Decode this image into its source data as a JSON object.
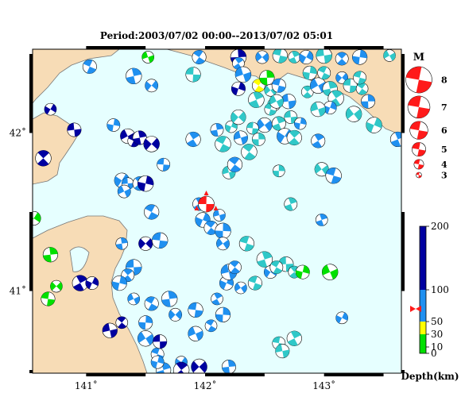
{
  "title": "Period:2003/07/02 00:00--2013/07/02 05:01",
  "x_ticks": [
    {
      "value": 141,
      "label": "141˚"
    },
    {
      "value": 142,
      "label": "142˚"
    },
    {
      "value": 143,
      "label": "143˚"
    }
  ],
  "y_ticks": [
    {
      "value": 42,
      "label": "42˚"
    },
    {
      "value": 41,
      "label": "41˚"
    }
  ],
  "extent": {
    "lon_min": 140.55,
    "lon_max": 143.65,
    "lat_min": 40.48,
    "lat_max": 42.53
  },
  "colors": {
    "sea": "#e6ffff",
    "land": "#f7dcb6",
    "coast": "#777777",
    "depth_0_30": "#00e000",
    "depth_30_50": "#ffff00",
    "depth_50_100": "#2090f0",
    "depth_100_200": "#0000a0",
    "teal": "#30c8c8",
    "main_event": "#ff1a1a"
  },
  "magnitude_legend": {
    "title": "M",
    "items": [
      {
        "label": "8",
        "mag": 8
      },
      {
        "label": "7",
        "mag": 7
      },
      {
        "label": "6",
        "mag": 6
      },
      {
        "label": "5",
        "mag": 5
      },
      {
        "label": "4",
        "mag": 4
      },
      {
        "label": "3",
        "mag": 3
      }
    ]
  },
  "depth_scale": {
    "ticks": [
      {
        "value": 200,
        "label": "200"
      },
      {
        "value": 100,
        "label": "100"
      },
      {
        "value": 50,
        "label": "50"
      },
      {
        "value": 30,
        "label": "30"
      },
      {
        "value": 10,
        "label": "10"
      },
      {
        "value": 0,
        "label": "0"
      }
    ],
    "unit": "Depth(km)",
    "main_event_depth": 70
  },
  "main_event": {
    "lon": 142.01,
    "lat": 41.55,
    "mag": 5.5
  },
  "events": [
    {
      "lon": 141.52,
      "lat": 42.48,
      "d": 20
    },
    {
      "lon": 141.95,
      "lat": 42.48,
      "d": 70
    },
    {
      "lon": 142.28,
      "lat": 42.48,
      "d": 150
    },
    {
      "lon": 142.48,
      "lat": 42.48,
      "d": 70
    },
    {
      "lon": 142.63,
      "lat": 42.49,
      "d": 60
    },
    {
      "lon": 142.75,
      "lat": 42.48,
      "d": 60
    },
    {
      "lon": 142.85,
      "lat": 42.48,
      "d": 70
    },
    {
      "lon": 143.0,
      "lat": 42.49,
      "d": 60
    },
    {
      "lon": 143.15,
      "lat": 42.47,
      "d": 80
    },
    {
      "lon": 143.3,
      "lat": 42.48,
      "d": 70
    },
    {
      "lon": 143.55,
      "lat": 42.49,
      "d": 60
    },
    {
      "lon": 141.03,
      "lat": 42.42,
      "d": 70
    },
    {
      "lon": 141.4,
      "lat": 42.36,
      "d": 70
    },
    {
      "lon": 141.55,
      "lat": 42.3,
      "d": 70
    },
    {
      "lon": 141.9,
      "lat": 42.37,
      "d": 60
    },
    {
      "lon": 142.28,
      "lat": 42.44,
      "d": 70
    },
    {
      "lon": 142.28,
      "lat": 42.28,
      "d": 150
    },
    {
      "lon": 142.32,
      "lat": 42.37,
      "d": 90
    },
    {
      "lon": 142.45,
      "lat": 42.3,
      "d": 40
    },
    {
      "lon": 142.52,
      "lat": 42.35,
      "d": 10
    },
    {
      "lon": 142.55,
      "lat": 42.27,
      "d": 60
    },
    {
      "lon": 142.62,
      "lat": 42.3,
      "d": 60
    },
    {
      "lon": 142.43,
      "lat": 42.21,
      "d": 60
    },
    {
      "lon": 142.58,
      "lat": 42.18,
      "d": 60
    },
    {
      "lon": 142.7,
      "lat": 42.2,
      "d": 60
    },
    {
      "lon": 142.86,
      "lat": 42.26,
      "d": 60
    },
    {
      "lon": 142.88,
      "lat": 42.38,
      "d": 60
    },
    {
      "lon": 142.95,
      "lat": 42.3,
      "d": 60
    },
    {
      "lon": 143.0,
      "lat": 42.38,
      "d": 60
    },
    {
      "lon": 143.05,
      "lat": 42.28,
      "d": 60
    },
    {
      "lon": 143.15,
      "lat": 42.35,
      "d": 60
    },
    {
      "lon": 143.22,
      "lat": 42.3,
      "d": 60
    },
    {
      "lon": 143.1,
      "lat": 42.22,
      "d": 60
    },
    {
      "lon": 143.05,
      "lat": 42.16,
      "d": 60
    },
    {
      "lon": 142.95,
      "lat": 42.15,
      "d": 60
    },
    {
      "lon": 143.32,
      "lat": 42.28,
      "d": 60
    },
    {
      "lon": 143.37,
      "lat": 42.2,
      "d": 60
    },
    {
      "lon": 143.25,
      "lat": 42.12,
      "d": 60
    },
    {
      "lon": 143.3,
      "lat": 42.35,
      "d": 60
    },
    {
      "lon": 143.62,
      "lat": 41.96,
      "d": 60
    },
    {
      "lon": 140.7,
      "lat": 42.15,
      "d": 150
    },
    {
      "lon": 140.9,
      "lat": 42.02,
      "d": 150
    },
    {
      "lon": 140.64,
      "lat": 41.84,
      "d": 150
    },
    {
      "lon": 141.23,
      "lat": 42.05,
      "d": 70
    },
    {
      "lon": 141.35,
      "lat": 41.98,
      "d": 150
    },
    {
      "lon": 141.4,
      "lat": 41.95,
      "d": 150
    },
    {
      "lon": 141.45,
      "lat": 41.97,
      "d": 150
    },
    {
      "lon": 141.55,
      "lat": 41.93,
      "d": 150
    },
    {
      "lon": 141.65,
      "lat": 41.8,
      "d": 70
    },
    {
      "lon": 141.9,
      "lat": 41.96,
      "d": 70
    },
    {
      "lon": 142.22,
      "lat": 42.04,
      "d": 60
    },
    {
      "lon": 142.3,
      "lat": 41.97,
      "d": 60
    },
    {
      "lon": 142.37,
      "lat": 41.88,
      "d": 60
    },
    {
      "lon": 142.45,
      "lat": 41.96,
      "d": 60
    },
    {
      "lon": 142.5,
      "lat": 42.05,
      "d": 60
    },
    {
      "lon": 142.55,
      "lat": 42.15,
      "d": 60
    },
    {
      "lon": 142.62,
      "lat": 42.06,
      "d": 60
    },
    {
      "lon": 142.67,
      "lat": 41.98,
      "d": 60
    },
    {
      "lon": 142.72,
      "lat": 42.1,
      "d": 60
    },
    {
      "lon": 142.75,
      "lat": 41.97,
      "d": 60
    },
    {
      "lon": 142.8,
      "lat": 42.06,
      "d": 60
    },
    {
      "lon": 142.6,
      "lat": 42.2,
      "d": 60
    },
    {
      "lon": 142.15,
      "lat": 41.93,
      "d": 60
    },
    {
      "lon": 142.1,
      "lat": 42.02,
      "d": 60
    },
    {
      "lon": 142.28,
      "lat": 42.1,
      "d": 60
    },
    {
      "lon": 142.4,
      "lat": 42.03,
      "d": 60
    },
    {
      "lon": 142.95,
      "lat": 41.95,
      "d": 60
    },
    {
      "lon": 143.42,
      "lat": 42.05,
      "d": 60
    },
    {
      "lon": 142.2,
      "lat": 41.75,
      "d": 60
    },
    {
      "lon": 142.25,
      "lat": 41.8,
      "d": 60
    },
    {
      "lon": 142.62,
      "lat": 41.76,
      "d": 60
    },
    {
      "lon": 142.98,
      "lat": 41.77,
      "d": 60
    },
    {
      "lon": 143.08,
      "lat": 41.73,
      "d": 60
    },
    {
      "lon": 142.72,
      "lat": 41.55,
      "d": 60
    },
    {
      "lon": 141.3,
      "lat": 41.7,
      "d": 70
    },
    {
      "lon": 141.35,
      "lat": 41.68,
      "d": 70
    },
    {
      "lon": 141.45,
      "lat": 41.68,
      "d": 70
    },
    {
      "lon": 141.5,
      "lat": 41.68,
      "d": 150
    },
    {
      "lon": 141.32,
      "lat": 41.63,
      "d": 70
    },
    {
      "lon": 141.55,
      "lat": 41.5,
      "d": 70
    },
    {
      "lon": 141.3,
      "lat": 41.3,
      "d": 70
    },
    {
      "lon": 141.5,
      "lat": 41.3,
      "d": 150
    },
    {
      "lon": 141.62,
      "lat": 41.32,
      "d": 70
    },
    {
      "lon": 141.95,
      "lat": 41.55,
      "d": 70
    },
    {
      "lon": 141.98,
      "lat": 41.45,
      "d": 70
    },
    {
      "lon": 142.12,
      "lat": 41.48,
      "d": 70
    },
    {
      "lon": 142.05,
      "lat": 41.4,
      "d": 70
    },
    {
      "lon": 142.15,
      "lat": 41.38,
      "d": 70
    },
    {
      "lon": 142.15,
      "lat": 41.3,
      "d": 70
    },
    {
      "lon": 142.35,
      "lat": 41.3,
      "d": 60
    },
    {
      "lon": 142.98,
      "lat": 41.45,
      "d": 70
    },
    {
      "lon": 140.56,
      "lat": 41.46,
      "d": 20
    },
    {
      "lon": 141.4,
      "lat": 41.15,
      "d": 70
    },
    {
      "lon": 141.35,
      "lat": 41.1,
      "d": 70
    },
    {
      "lon": 141.28,
      "lat": 41.05,
      "d": 70
    },
    {
      "lon": 141.4,
      "lat": 40.95,
      "d": 70
    },
    {
      "lon": 141.55,
      "lat": 40.92,
      "d": 70
    },
    {
      "lon": 141.7,
      "lat": 40.95,
      "d": 70
    },
    {
      "lon": 141.75,
      "lat": 40.85,
      "d": 70
    },
    {
      "lon": 141.92,
      "lat": 40.88,
      "d": 70
    },
    {
      "lon": 142.1,
      "lat": 40.95,
      "d": 70
    },
    {
      "lon": 142.18,
      "lat": 41.05,
      "d": 70
    },
    {
      "lon": 142.2,
      "lat": 41.12,
      "d": 70
    },
    {
      "lon": 142.25,
      "lat": 41.15,
      "d": 70
    },
    {
      "lon": 142.15,
      "lat": 40.85,
      "d": 70
    },
    {
      "lon": 142.3,
      "lat": 41.02,
      "d": 70
    },
    {
      "lon": 142.42,
      "lat": 41.05,
      "d": 60
    },
    {
      "lon": 142.5,
      "lat": 41.2,
      "d": 60
    },
    {
      "lon": 142.55,
      "lat": 41.12,
      "d": 60
    },
    {
      "lon": 142.68,
      "lat": 41.17,
      "d": 60
    },
    {
      "lon": 142.75,
      "lat": 41.12,
      "d": 60
    },
    {
      "lon": 142.82,
      "lat": 41.12,
      "d": 20
    },
    {
      "lon": 143.05,
      "lat": 41.12,
      "d": 20
    },
    {
      "lon": 142.6,
      "lat": 41.15,
      "d": 60
    },
    {
      "lon": 140.7,
      "lat": 41.23,
      "d": 20
    },
    {
      "lon": 140.75,
      "lat": 41.03,
      "d": 20
    },
    {
      "lon": 140.68,
      "lat": 40.95,
      "d": 20
    },
    {
      "lon": 140.95,
      "lat": 41.05,
      "d": 150
    },
    {
      "lon": 141.05,
      "lat": 41.05,
      "d": 150
    },
    {
      "lon": 141.2,
      "lat": 40.75,
      "d": 150
    },
    {
      "lon": 141.3,
      "lat": 40.8,
      "d": 150
    },
    {
      "lon": 141.5,
      "lat": 40.8,
      "d": 70
    },
    {
      "lon": 141.5,
      "lat": 40.7,
      "d": 70
    },
    {
      "lon": 141.6,
      "lat": 40.6,
      "d": 70
    },
    {
      "lon": 141.65,
      "lat": 40.5,
      "d": 70
    },
    {
      "lon": 141.8,
      "lat": 40.55,
      "d": 70
    },
    {
      "lon": 141.62,
      "lat": 40.68,
      "d": 150
    },
    {
      "lon": 141.8,
      "lat": 40.5,
      "d": 150
    },
    {
      "lon": 141.6,
      "lat": 40.55,
      "d": 70
    },
    {
      "lon": 141.92,
      "lat": 40.73,
      "d": 70
    },
    {
      "lon": 142.05,
      "lat": 40.78,
      "d": 70
    },
    {
      "lon": 142.2,
      "lat": 40.52,
      "d": 70
    },
    {
      "lon": 141.95,
      "lat": 40.52,
      "d": 150
    },
    {
      "lon": 142.62,
      "lat": 40.67,
      "d": 60
    },
    {
      "lon": 142.75,
      "lat": 40.7,
      "d": 60
    },
    {
      "lon": 143.15,
      "lat": 40.83,
      "d": 70
    },
    {
      "lon": 142.65,
      "lat": 40.62,
      "d": 60
    }
  ]
}
